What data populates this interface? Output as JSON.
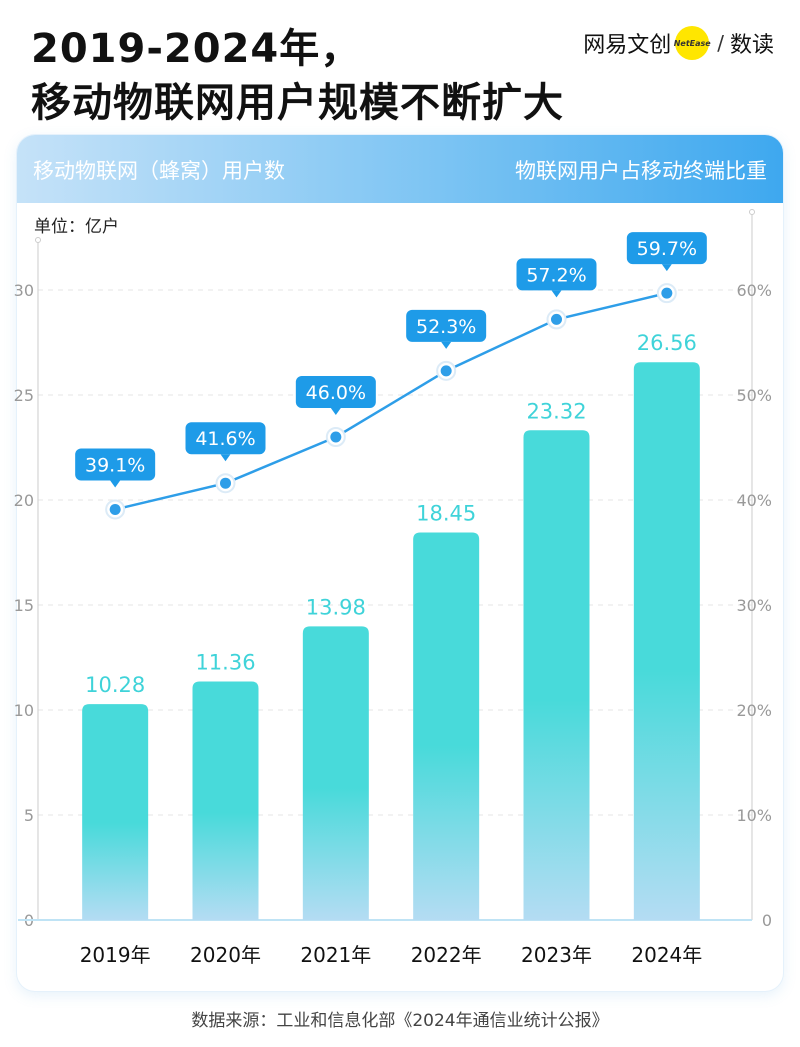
{
  "header": {
    "title_line1": "2019-2024年，",
    "title_line2": "移动物联网用户规模不断扩大",
    "brand_left": "网易文创",
    "brand_dot": "NetEase",
    "brand_sep": "/",
    "brand_right": "数读"
  },
  "card": {
    "left_title": "移动物联网（蜂窝）用户数",
    "right_title": "物联网用户占移动终端比重",
    "unit": "单位：亿户"
  },
  "colors": {
    "bar_top": "#48dada",
    "bar_bottom": "#b4dcf3",
    "line": "#2e9ee8",
    "callout": "#1e9be8",
    "bar_value": "#3fd3d9"
  },
  "source": "数据来源：工业和信息化部《2024年通信业统计公报》",
  "chart_data": {
    "type": "bar",
    "categories": [
      "2019年",
      "2020年",
      "2021年",
      "2022年",
      "2023年",
      "2024年"
    ],
    "series": [
      {
        "name": "移动物联网（蜂窝）用户数",
        "type": "bar",
        "axis": "left",
        "values": [
          10.28,
          11.36,
          13.98,
          18.45,
          23.32,
          26.56
        ],
        "labels": [
          "10.28",
          "11.36",
          "13.98",
          "18.45",
          "23.32",
          "26.56"
        ]
      },
      {
        "name": "物联网用户占移动终端比重",
        "type": "line",
        "axis": "right",
        "values": [
          39.1,
          41.6,
          46.0,
          52.3,
          57.2,
          59.7
        ],
        "labels": [
          "39.1%",
          "41.6%",
          "46.0%",
          "52.3%",
          "57.2%",
          "59.7%"
        ]
      }
    ],
    "y_left": {
      "ticks": [
        "0",
        "5",
        "10",
        "15",
        "20",
        "25",
        "30"
      ],
      "ylim": [
        0,
        30
      ]
    },
    "y_right": {
      "ticks": [
        "0",
        "10%",
        "20%",
        "30%",
        "40%",
        "50%",
        "60%"
      ],
      "ylim": [
        0,
        60
      ]
    },
    "ylabel": "单位：亿户",
    "grid": true
  }
}
